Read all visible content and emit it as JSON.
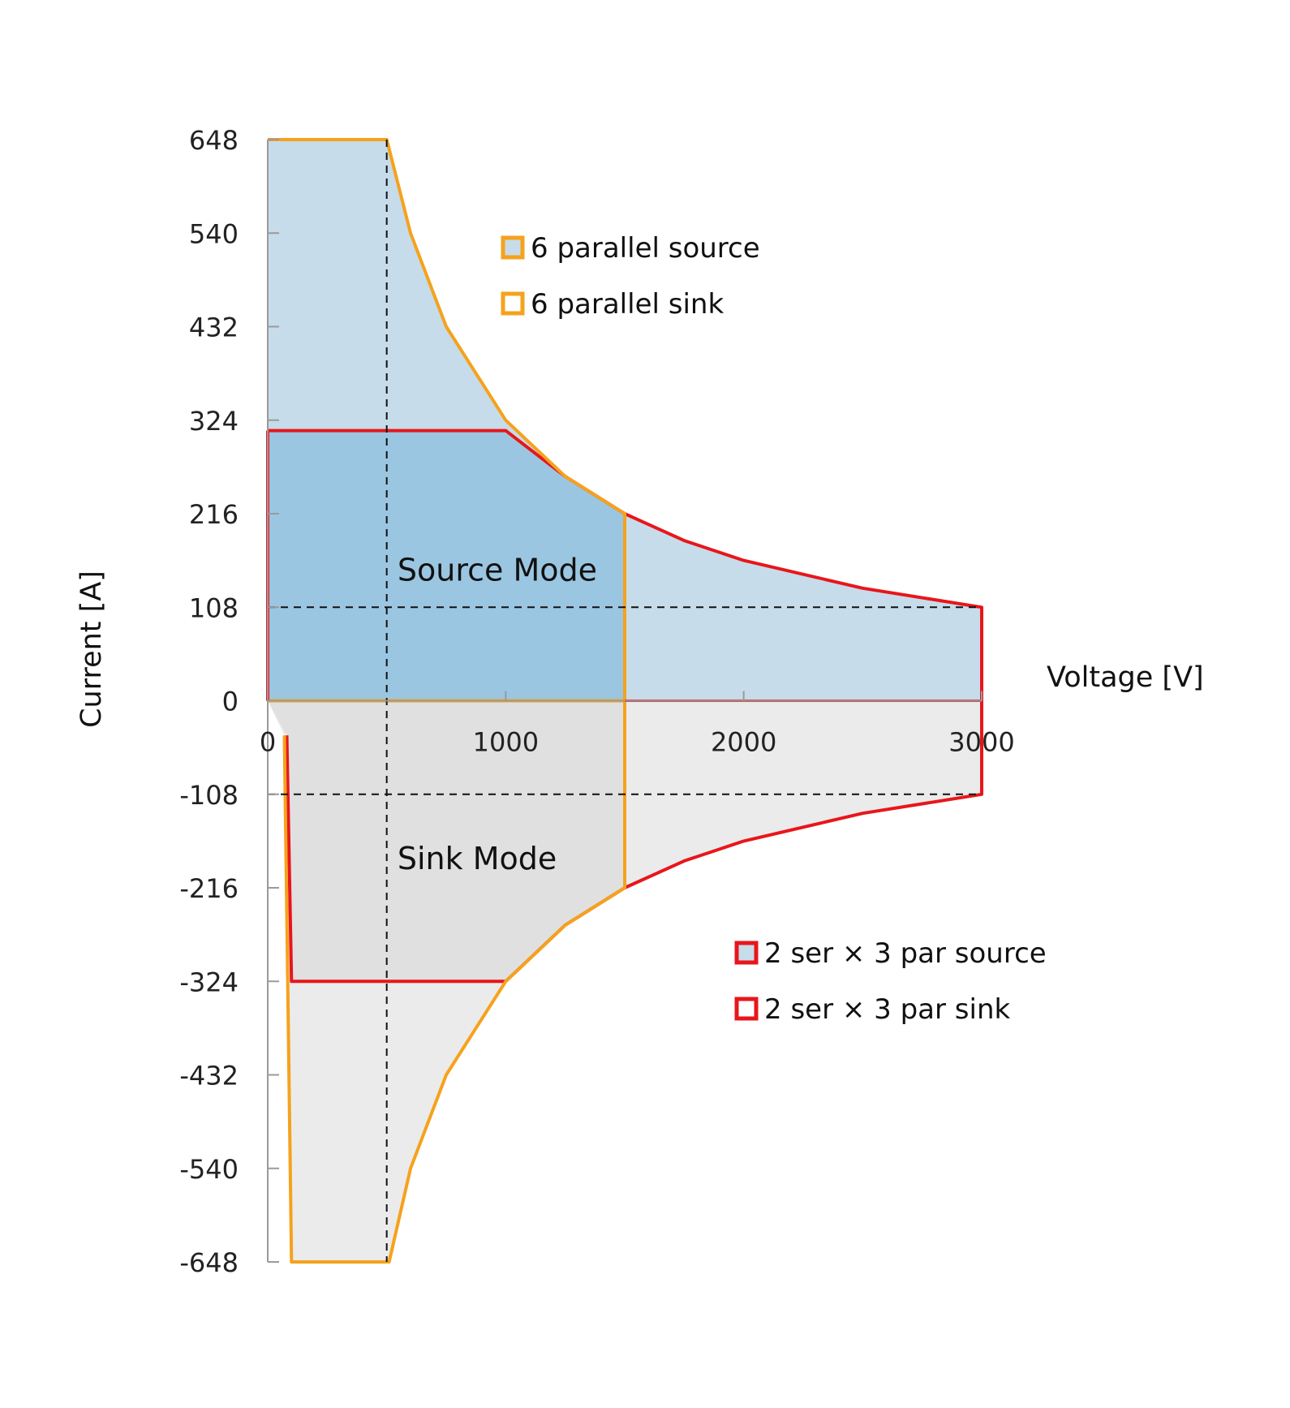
{
  "chart_data": {
    "type": "area",
    "xlabel": "Voltage [V]",
    "ylabel": "Current [A]",
    "xlim": [
      0,
      3000
    ],
    "ylim": [
      -648,
      648
    ],
    "x_ticks": [
      0,
      1000,
      2000,
      3000
    ],
    "x_tick_labels": [
      "0",
      "1000",
      "2000",
      "3000"
    ],
    "y_ticks": [
      648,
      540,
      432,
      324,
      216,
      108,
      0,
      -108,
      -216,
      -324,
      -432,
      -540,
      -648
    ],
    "y_tick_labels": [
      "648",
      "540",
      "432",
      "324",
      "216",
      "108",
      "0",
      "-108",
      "-216",
      "-324",
      "-432",
      "-540",
      "-648"
    ],
    "grid": false,
    "annotations": [
      {
        "text": "Source Mode",
        "x": 545,
        "y": 150
      },
      {
        "text": "Sink Mode",
        "x": 545,
        "y": -183
      }
    ],
    "reference_lines": [
      {
        "orientation": "vertical",
        "x": 500,
        "y_range": [
          -648,
          648
        ]
      },
      {
        "orientation": "horizontal",
        "y": 108,
        "x_range": [
          0,
          3000
        ]
      },
      {
        "orientation": "horizontal",
        "y": -108,
        "x_range": [
          0,
          3000
        ]
      }
    ],
    "series": [
      {
        "name": "6 parallel source",
        "color": "#f5a21c",
        "fill": "#c6dcea",
        "points": [
          [
            0,
            0
          ],
          [
            0,
            648
          ],
          [
            500,
            648
          ],
          [
            600,
            540
          ],
          [
            750,
            432
          ],
          [
            1000,
            324
          ],
          [
            1250,
            259
          ],
          [
            1500,
            216
          ],
          [
            1500,
            0
          ]
        ]
      },
      {
        "name": "6 parallel sink",
        "color": "#f5a21c",
        "fill": "#ebebeb",
        "points": [
          [
            0,
            0
          ],
          [
            70,
            -40
          ],
          [
            100,
            -648
          ],
          [
            510,
            -648
          ],
          [
            600,
            -540
          ],
          [
            750,
            -432
          ],
          [
            1000,
            -324
          ],
          [
            1250,
            -259
          ],
          [
            1500,
            -216
          ],
          [
            1500,
            0
          ]
        ]
      },
      {
        "name": "2 ser × 3 par source",
        "color": "#e8161b",
        "fill": "#c6dcea",
        "points": [
          [
            0,
            0
          ],
          [
            0,
            312
          ],
          [
            1000,
            312
          ],
          [
            1250,
            259
          ],
          [
            1500,
            216
          ],
          [
            1750,
            185
          ],
          [
            2000,
            162
          ],
          [
            2500,
            130
          ],
          [
            3000,
            108
          ],
          [
            3000,
            0
          ]
        ]
      },
      {
        "name": "2 ser × 3 par sink",
        "color": "#e8161b",
        "fill": "#ebebeb",
        "points": [
          [
            0,
            0
          ],
          [
            80,
            -40
          ],
          [
            100,
            -324
          ],
          [
            1000,
            -324
          ],
          [
            1250,
            -259
          ],
          [
            1500,
            -216
          ],
          [
            1750,
            -185
          ],
          [
            2000,
            -162
          ],
          [
            2500,
            -130
          ],
          [
            3000,
            -108
          ],
          [
            3000,
            0
          ]
        ]
      }
    ],
    "overlap_fills": {
      "source": "#9bc6e2",
      "sink": "#e0e0e0"
    },
    "legend": [
      {
        "label": "6 parallel source",
        "border": "#f5a21c",
        "fill": "#c6dcea",
        "placement": "top-center"
      },
      {
        "label": "6 parallel sink",
        "border": "#f5a21c",
        "fill": "#ffffff",
        "placement": "top-center"
      },
      {
        "label": "2 ser × 3 par source",
        "border": "#e8161b",
        "fill": "#c6dcea",
        "placement": "bottom-right"
      },
      {
        "label": "2 ser × 3 par sink",
        "border": "#e8161b",
        "fill": "#ffffff",
        "placement": "bottom-right"
      }
    ]
  }
}
